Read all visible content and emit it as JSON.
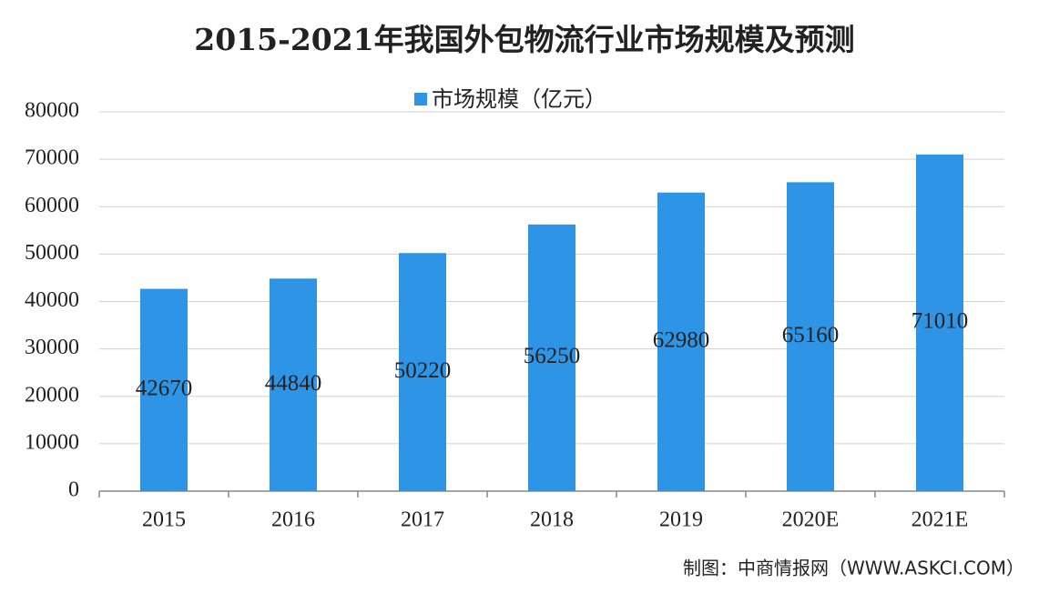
{
  "chart_data": {
    "type": "bar",
    "title": "2015-2021年我国外包物流行业市场规模及预测",
    "categories": [
      "2015",
      "2016",
      "2017",
      "2018",
      "2019",
      "2020E",
      "2021E"
    ],
    "series": [
      {
        "name": "市场规模（亿元）",
        "color": "#2e95e6",
        "values": [
          42670,
          44840,
          50220,
          56250,
          62980,
          65160,
          71010
        ]
      }
    ],
    "ylim": [
      0,
      80000
    ],
    "yticks": [
      0,
      10000,
      20000,
      30000,
      40000,
      50000,
      60000,
      70000,
      80000
    ],
    "grid": true,
    "legend": "top",
    "source": "制图：中商情报网（WWW.ASKCI.COM）"
  }
}
